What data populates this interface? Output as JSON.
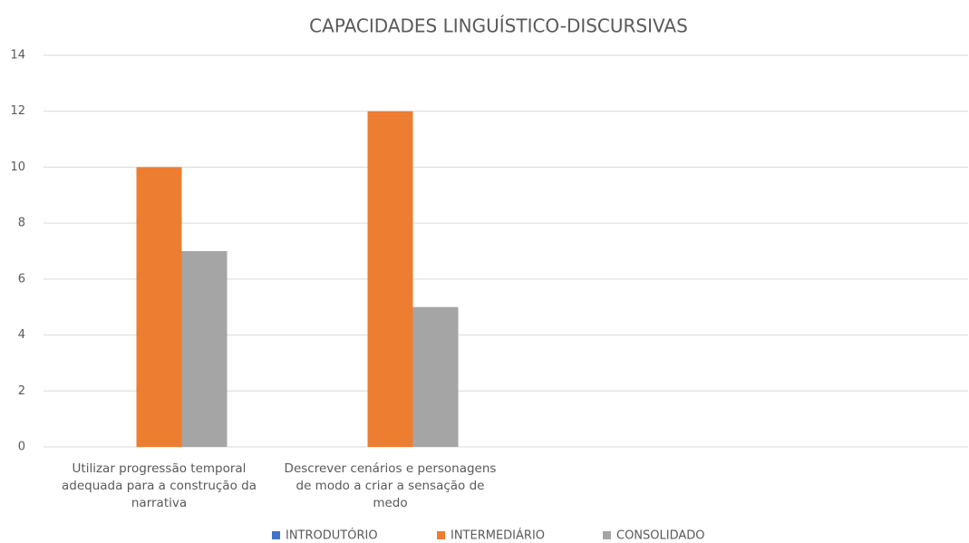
{
  "chart_data": {
    "type": "bar",
    "title": "CAPACIDADES LINGUÍSTICO-DISCURSIVAS",
    "categories": [
      "Utilizar progressão temporal adequada para a construção da narrativa",
      "Descrever cenários e personagens de modo a criar a sensação de medo",
      null,
      null
    ],
    "series": [
      {
        "name": "INTRODUTÓRIO",
        "color": "#4472c4",
        "values": [
          0,
          0,
          null,
          null
        ]
      },
      {
        "name": "INTERMEDIÁRIO",
        "color": "#ed7d31",
        "values": [
          10,
          12,
          null,
          null
        ]
      },
      {
        "name": "CONSOLIDADO",
        "color": "#a5a5a5",
        "values": [
          7,
          5,
          null,
          null
        ]
      }
    ],
    "ylim": [
      0,
      14
    ],
    "yticks": [
      0,
      2,
      4,
      6,
      8,
      10,
      12,
      14
    ],
    "grid": true,
    "legend": "bottom"
  }
}
